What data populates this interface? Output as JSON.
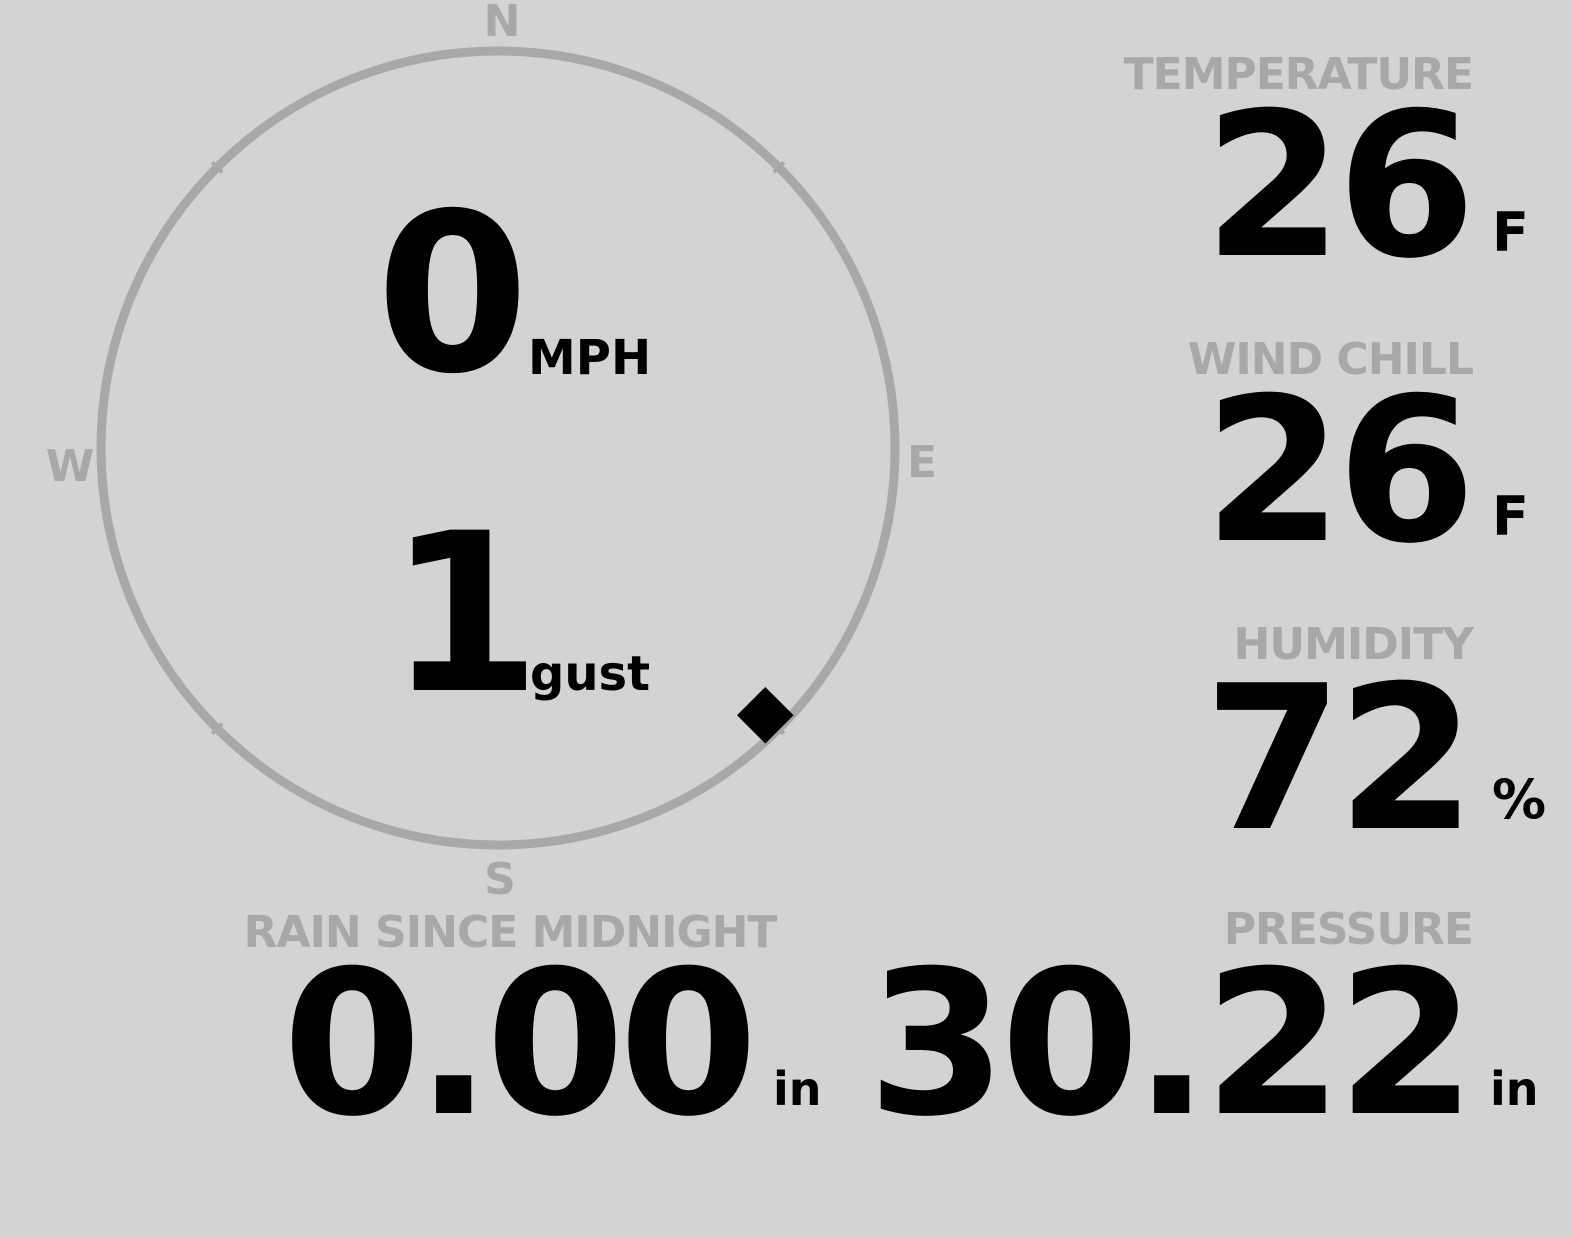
{
  "compass": {
    "north": "N",
    "east": "E",
    "south": "S",
    "west": "W",
    "wind_direction_deg": 135,
    "ring_color": "#a8a8a8"
  },
  "wind": {
    "speed": "0",
    "speed_unit": "MPH",
    "gust": "1",
    "gust_label": "gust"
  },
  "temperature": {
    "label": "TEMPERATURE",
    "value": "26",
    "unit": "F"
  },
  "wind_chill": {
    "label": "WIND CHILL",
    "value": "26",
    "unit": "F"
  },
  "humidity": {
    "label": "HUMIDITY",
    "value": "72",
    "unit": "%"
  },
  "pressure": {
    "label": "PRESSURE",
    "value": "30.22",
    "unit": "in"
  },
  "rain": {
    "label": "RAIN SINCE MIDNIGHT",
    "value": "0.00",
    "unit": "in"
  },
  "colors": {
    "background": "#d3d3d3",
    "label": "#a8a8a8",
    "value": "#000000"
  }
}
